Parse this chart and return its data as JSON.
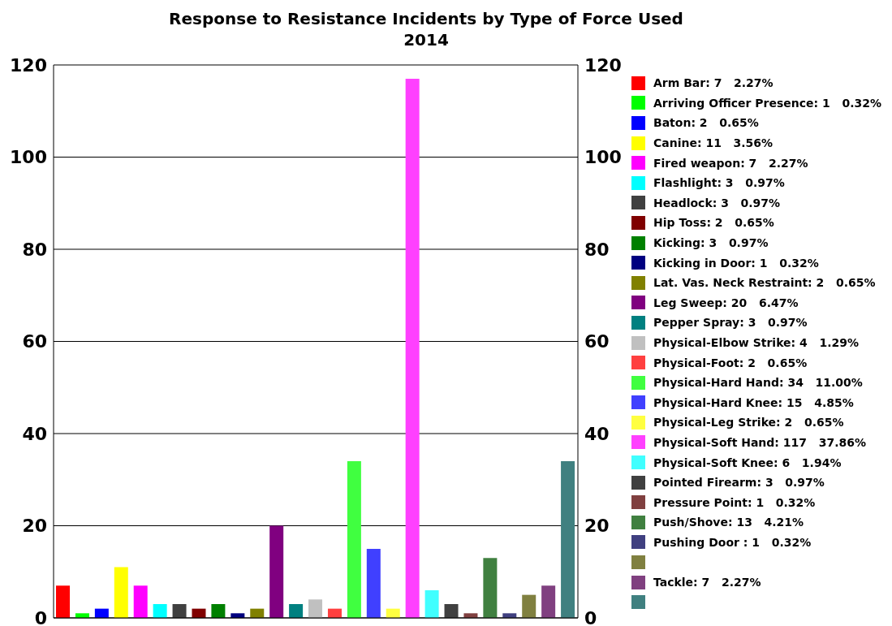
{
  "chart_data": {
    "type": "bar",
    "title": "Response to Resistance Incidents by Type of Force Used",
    "subtitle": "2014",
    "categories": [
      null,
      null,
      null,
      null,
      null,
      null,
      null,
      null,
      null,
      null,
      null,
      null,
      null,
      null,
      null,
      null,
      null,
      null,
      null,
      null,
      null,
      null,
      null,
      null,
      null,
      null,
      null
    ],
    "stacked": true,
    "series": [
      {
        "name": "Arm Bar: 7   2.27%",
        "color": "#ff0000",
        "values": [
          7,
          null,
          null,
          null,
          null,
          null,
          null,
          null,
          null,
          null,
          null,
          null,
          null,
          null,
          null,
          null,
          null,
          null,
          null,
          null,
          null,
          null,
          null,
          null,
          null,
          null,
          null
        ]
      },
      {
        "name": "Arriving Officer Presence: 1   0.32%",
        "color": "#00ff00",
        "values": [
          null,
          1,
          null,
          null,
          null,
          null,
          null,
          null,
          null,
          null,
          null,
          null,
          null,
          null,
          null,
          null,
          null,
          null,
          null,
          null,
          null,
          null,
          null,
          null,
          null,
          null,
          null
        ]
      },
      {
        "name": "Baton: 2   0.65%",
        "color": "#0000ff",
        "values": [
          null,
          null,
          2,
          null,
          null,
          null,
          null,
          null,
          null,
          null,
          null,
          null,
          null,
          null,
          null,
          null,
          null,
          null,
          null,
          null,
          null,
          null,
          null,
          null,
          null,
          null,
          null
        ]
      },
      {
        "name": "Canine: 11   3.56%",
        "color": "#ffff00",
        "values": [
          null,
          null,
          null,
          11,
          null,
          null,
          null,
          null,
          null,
          null,
          null,
          null,
          null,
          null,
          null,
          null,
          null,
          null,
          null,
          null,
          null,
          null,
          null,
          null,
          null,
          null,
          null
        ]
      },
      {
        "name": "Fired weapon: 7   2.27%",
        "color": "#ff00ff",
        "values": [
          null,
          null,
          null,
          null,
          7,
          null,
          null,
          null,
          null,
          null,
          null,
          null,
          null,
          null,
          null,
          null,
          null,
          null,
          null,
          null,
          null,
          null,
          null,
          null,
          null,
          null,
          null
        ]
      },
      {
        "name": "Flashlight: 3   0.97%",
        "color": "#00ffff",
        "values": [
          null,
          null,
          null,
          null,
          null,
          3,
          null,
          null,
          null,
          null,
          null,
          null,
          null,
          null,
          null,
          null,
          null,
          null,
          null,
          null,
          null,
          null,
          null,
          null,
          null,
          null,
          null
        ]
      },
      {
        "name": "Headlock: 3   0.97%",
        "color": "#404040",
        "values": [
          null,
          null,
          null,
          null,
          null,
          null,
          3,
          null,
          null,
          null,
          null,
          null,
          null,
          null,
          null,
          null,
          null,
          null,
          null,
          null,
          null,
          null,
          null,
          null,
          null,
          null,
          null
        ]
      },
      {
        "name": "Hip Toss: 2   0.65%",
        "color": "#800000",
        "values": [
          null,
          null,
          null,
          null,
          null,
          null,
          null,
          2,
          null,
          null,
          null,
          null,
          null,
          null,
          null,
          null,
          null,
          null,
          null,
          null,
          null,
          null,
          null,
          null,
          null,
          null,
          null
        ]
      },
      {
        "name": "Kicking: 3   0.97%",
        "color": "#008000",
        "values": [
          null,
          null,
          null,
          null,
          null,
          null,
          null,
          null,
          3,
          null,
          null,
          null,
          null,
          null,
          null,
          null,
          null,
          null,
          null,
          null,
          null,
          null,
          null,
          null,
          null,
          null,
          null
        ]
      },
      {
        "name": "Kicking in Door: 1   0.32%",
        "color": "#000080",
        "values": [
          null,
          null,
          null,
          null,
          null,
          null,
          null,
          null,
          null,
          1,
          null,
          null,
          null,
          null,
          null,
          null,
          null,
          null,
          null,
          null,
          null,
          null,
          null,
          null,
          null,
          null,
          null
        ]
      },
      {
        "name": "Lat. Vas. Neck Restraint: 2   0.65%",
        "color": "#808000",
        "values": [
          null,
          null,
          null,
          null,
          null,
          null,
          null,
          null,
          null,
          null,
          2,
          null,
          null,
          null,
          null,
          null,
          null,
          null,
          null,
          null,
          null,
          null,
          null,
          null,
          null,
          null,
          null
        ]
      },
      {
        "name": "Leg Sweep: 20   6.47%",
        "color": "#800080",
        "values": [
          null,
          null,
          null,
          null,
          null,
          null,
          null,
          null,
          null,
          null,
          null,
          20,
          null,
          null,
          null,
          null,
          null,
          null,
          null,
          null,
          null,
          null,
          null,
          null,
          null,
          null,
          null
        ]
      },
      {
        "name": "Pepper Spray: 3   0.97%",
        "color": "#008080",
        "values": [
          null,
          null,
          null,
          null,
          null,
          null,
          null,
          null,
          null,
          null,
          null,
          null,
          3,
          null,
          null,
          null,
          null,
          null,
          null,
          null,
          null,
          null,
          null,
          null,
          null,
          null,
          null
        ]
      },
      {
        "name": "Physical-Elbow Strike: 4   1.29%",
        "color": "#c0c0c0",
        "values": [
          null,
          null,
          null,
          null,
          null,
          null,
          null,
          null,
          null,
          null,
          null,
          null,
          null,
          4,
          null,
          null,
          null,
          null,
          null,
          null,
          null,
          null,
          null,
          null,
          null,
          null,
          null
        ]
      },
      {
        "name": "Physical-Foot: 2   0.65%",
        "color": "#ff4040",
        "values": [
          null,
          null,
          null,
          null,
          null,
          null,
          null,
          null,
          null,
          null,
          null,
          null,
          null,
          null,
          2,
          null,
          null,
          null,
          null,
          null,
          null,
          null,
          null,
          null,
          null,
          null,
          null
        ]
      },
      {
        "name": "Physical-Hard Hand: 34   11.00%",
        "color": "#40ff40",
        "values": [
          null,
          null,
          null,
          null,
          null,
          null,
          null,
          null,
          null,
          null,
          null,
          null,
          null,
          null,
          null,
          34,
          null,
          null,
          null,
          null,
          null,
          null,
          null,
          null,
          null,
          null,
          null
        ]
      },
      {
        "name": "Physical-Hard Knee: 15   4.85%",
        "color": "#4040ff",
        "values": [
          null,
          null,
          null,
          null,
          null,
          null,
          null,
          null,
          null,
          null,
          null,
          null,
          null,
          null,
          null,
          null,
          15,
          null,
          null,
          null,
          null,
          null,
          null,
          null,
          null,
          null,
          null
        ]
      },
      {
        "name": "Physical-Leg Strike: 2   0.65%",
        "color": "#ffff40",
        "values": [
          null,
          null,
          null,
          null,
          null,
          null,
          null,
          null,
          null,
          null,
          null,
          null,
          null,
          null,
          null,
          null,
          null,
          2,
          null,
          null,
          null,
          null,
          null,
          null,
          null,
          null,
          null
        ]
      },
      {
        "name": "Physical-Soft Hand: 117   37.86%",
        "color": "#ff40ff",
        "values": [
          null,
          null,
          null,
          null,
          null,
          null,
          null,
          null,
          null,
          null,
          null,
          null,
          null,
          null,
          null,
          null,
          null,
          null,
          117,
          null,
          null,
          null,
          null,
          null,
          null,
          null,
          null
        ]
      },
      {
        "name": "Physical-Soft Knee: 6   1.94%",
        "color": "#40ffff",
        "values": [
          null,
          null,
          null,
          null,
          null,
          null,
          null,
          null,
          null,
          null,
          null,
          null,
          null,
          null,
          null,
          null,
          null,
          null,
          null,
          6,
          null,
          null,
          null,
          null,
          null,
          null,
          null
        ]
      },
      {
        "name": "Pointed Firearm: 3   0.97%",
        "color": "#404040",
        "values": [
          null,
          null,
          null,
          null,
          null,
          null,
          null,
          null,
          null,
          null,
          null,
          null,
          null,
          null,
          null,
          null,
          null,
          null,
          null,
          null,
          3,
          null,
          null,
          null,
          null,
          null,
          null
        ]
      },
      {
        "name": "Pressure Point: 1   0.32%",
        "color": "#804040",
        "values": [
          null,
          null,
          null,
          null,
          null,
          null,
          null,
          null,
          null,
          null,
          null,
          null,
          null,
          null,
          null,
          null,
          null,
          null,
          null,
          null,
          null,
          1,
          null,
          null,
          null,
          null,
          null
        ]
      },
      {
        "name": "Push/Shove: 13   4.21%",
        "color": "#408040",
        "values": [
          null,
          null,
          null,
          null,
          null,
          null,
          null,
          null,
          null,
          null,
          null,
          null,
          null,
          null,
          null,
          null,
          null,
          null,
          null,
          null,
          null,
          null,
          13,
          null,
          null,
          null,
          null
        ]
      },
      {
        "name": "Pushing Door : 1   0.32%",
        "color": "#404080",
        "values": [
          null,
          null,
          null,
          null,
          null,
          null,
          null,
          null,
          null,
          null,
          null,
          null,
          null,
          null,
          null,
          null,
          null,
          null,
          null,
          null,
          null,
          null,
          null,
          1,
          null,
          null,
          null
        ]
      },
      {
        "color": "#808040",
        "values": [
          null,
          null,
          null,
          null,
          null,
          null,
          null,
          null,
          null,
          null,
          null,
          null,
          null,
          null,
          null,
          null,
          null,
          null,
          null,
          null,
          null,
          null,
          null,
          null,
          5,
          null,
          null
        ]
      },
      {
        "name": "Tackle: 7   2.27%",
        "color": "#804080",
        "values": [
          null,
          null,
          null,
          null,
          null,
          null,
          null,
          null,
          null,
          null,
          null,
          null,
          null,
          null,
          null,
          null,
          null,
          null,
          null,
          null,
          null,
          null,
          null,
          null,
          null,
          7,
          null
        ]
      },
      {
        "color": "#408080",
        "values": [
          null,
          null,
          null,
          null,
          null,
          null,
          null,
          null,
          null,
          null,
          null,
          null,
          null,
          null,
          null,
          null,
          null,
          null,
          null,
          null,
          null,
          null,
          null,
          null,
          null,
          null,
          34
        ]
      }
    ],
    "ylim": [
      0,
      120
    ],
    "yticks": [
      0,
      20,
      40,
      60,
      80,
      100,
      120
    ],
    "y2lim": [
      0,
      120
    ],
    "y2ticks": [
      0,
      20,
      40,
      60,
      80,
      100,
      120
    ],
    "grid": "y",
    "legend": "right",
    "tick_labels": "y"
  }
}
